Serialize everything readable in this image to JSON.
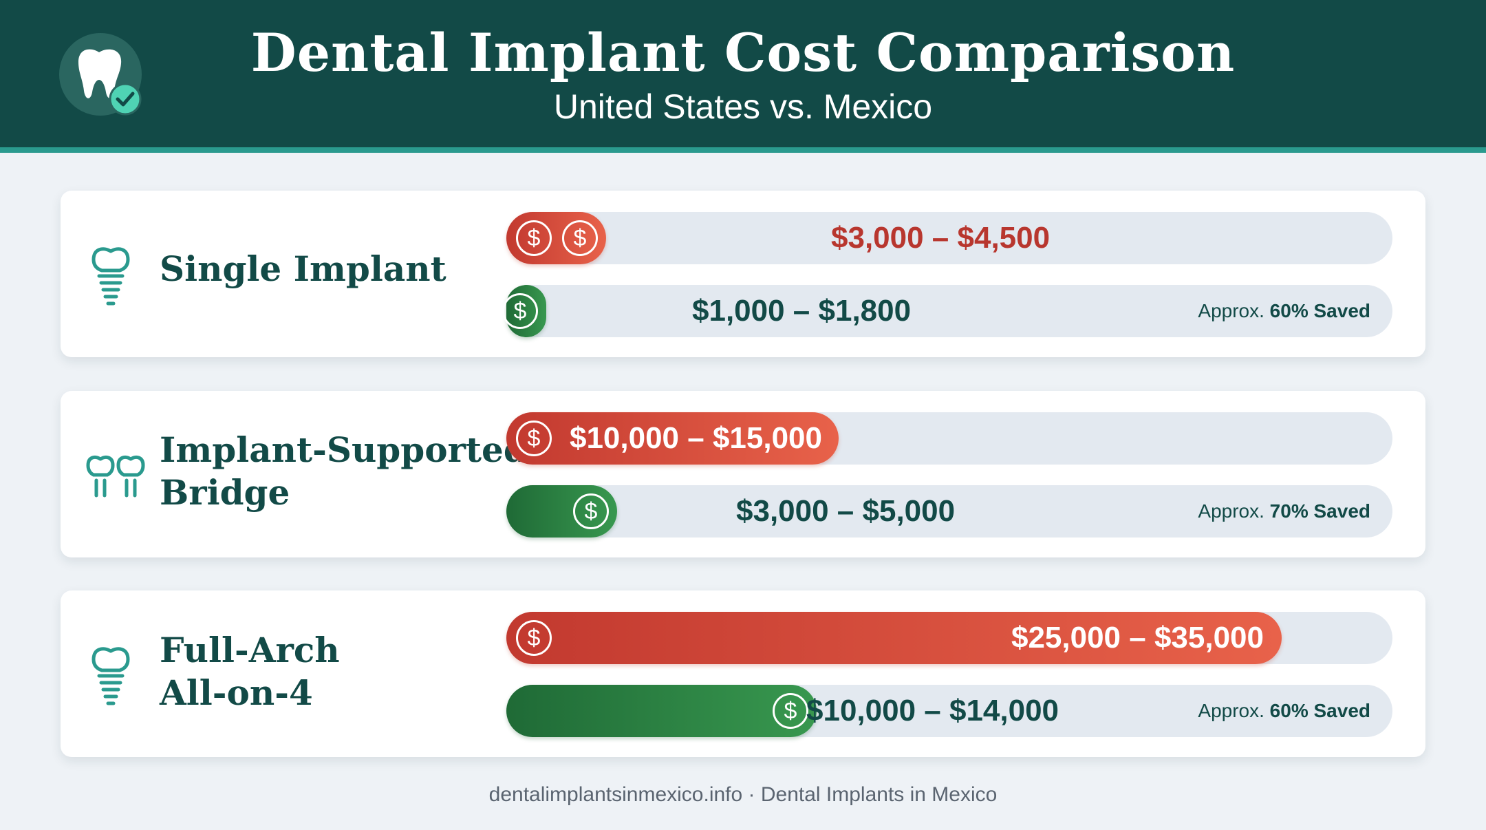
{
  "header": {
    "title": "Dental Implant Cost Comparison",
    "subtitle": "United States vs. Mexico"
  },
  "chart_data": {
    "type": "bar",
    "title": "Dental Implant Cost Comparison",
    "subtitle": "United States vs. Mexico",
    "currency_symbol": "$",
    "categories": [
      "Single Implant",
      "Implant-Supported\nBridge",
      "Full-Arch\nAll-on-4"
    ],
    "xlim": [
      0,
      40000
    ],
    "series": [
      {
        "name": "United States",
        "color": "#d24a3a",
        "labels": [
          "$3,000 – $4,500",
          "$10,000 – $15,000",
          "$25,000 – $35,000"
        ],
        "values": [
          4500,
          15000,
          35000
        ]
      },
      {
        "name": "Mexico",
        "color": "#2e8046",
        "labels": [
          "$1,000 – $1,800",
          "$3,000 – $5,000",
          "$10,000 – $14,000"
        ],
        "values": [
          1800,
          5000,
          14000
        ]
      }
    ],
    "savings": [
      {
        "prefix": "Approx.",
        "value": "60% Saved"
      },
      {
        "prefix": "Approx.",
        "value": "70% Saved"
      },
      {
        "prefix": "Approx.",
        "value": "60% Saved"
      }
    ]
  },
  "footer": {
    "text": "dentalimplantsinmexico.info · Dental Implants in Mexico"
  },
  "colors": {
    "header_bg": "#124a47",
    "accent": "#2a9a8e",
    "us_bar": "#d24a3a",
    "mx_bar": "#2e8046"
  },
  "icons": [
    "tooth-check-icon",
    "implant-icon",
    "bridge-icon",
    "dollar-icon"
  ]
}
